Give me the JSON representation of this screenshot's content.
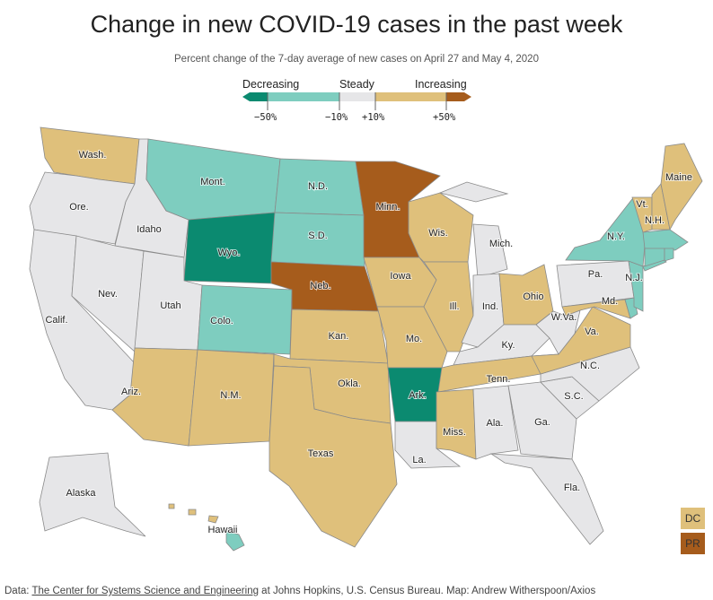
{
  "title": "Change in new COVID-19 cases in the past week",
  "subtitle": "Percent change of the 7-day average of new cases on April 27 and May 4, 2020",
  "legend": {
    "labels": {
      "decreasing": "Decreasing",
      "steady": "Steady",
      "increasing": "Increasing"
    },
    "ticks": [
      "−50%",
      "−10%",
      "+10%",
      "+50%"
    ],
    "colors": {
      "strong_decrease": "#0b8a70",
      "decrease": "#7ecdbf",
      "steady": "#e6e6e8",
      "increase": "#dfc07b",
      "strong_increase": "#a65c1c"
    }
  },
  "states": [
    {
      "id": "WA",
      "label": "Wash.",
      "cat": "increase"
    },
    {
      "id": "OR",
      "label": "Ore.",
      "cat": "steady"
    },
    {
      "id": "CA",
      "label": "Calif.",
      "cat": "steady"
    },
    {
      "id": "ID",
      "label": "Idaho",
      "cat": "steady"
    },
    {
      "id": "NV",
      "label": "Nev.",
      "cat": "steady"
    },
    {
      "id": "MT",
      "label": "Mont.",
      "cat": "decrease"
    },
    {
      "id": "WY",
      "label": "Wyo.",
      "cat": "strong_decrease"
    },
    {
      "id": "UT",
      "label": "Utah",
      "cat": "steady"
    },
    {
      "id": "AZ",
      "label": "Ariz.",
      "cat": "increase"
    },
    {
      "id": "CO",
      "label": "Colo.",
      "cat": "decrease"
    },
    {
      "id": "NM",
      "label": "N.M.",
      "cat": "increase"
    },
    {
      "id": "ND",
      "label": "N.D.",
      "cat": "decrease"
    },
    {
      "id": "SD",
      "label": "S.D.",
      "cat": "decrease"
    },
    {
      "id": "NE",
      "label": "Neb.",
      "cat": "strong_increase"
    },
    {
      "id": "KS",
      "label": "Kan.",
      "cat": "increase"
    },
    {
      "id": "OK",
      "label": "Okla.",
      "cat": "increase"
    },
    {
      "id": "TX",
      "label": "Texas",
      "cat": "increase"
    },
    {
      "id": "MN",
      "label": "Minn.",
      "cat": "strong_increase"
    },
    {
      "id": "IA",
      "label": "Iowa",
      "cat": "increase"
    },
    {
      "id": "MO",
      "label": "Mo.",
      "cat": "increase"
    },
    {
      "id": "AR",
      "label": "Ark.",
      "cat": "strong_decrease"
    },
    {
      "id": "LA",
      "label": "La.",
      "cat": "steady"
    },
    {
      "id": "WI",
      "label": "Wis.",
      "cat": "increase"
    },
    {
      "id": "IL",
      "label": "Ill.",
      "cat": "increase"
    },
    {
      "id": "MI",
      "label": "Mich.",
      "cat": "steady"
    },
    {
      "id": "IN",
      "label": "Ind.",
      "cat": "steady"
    },
    {
      "id": "OH",
      "label": "Ohio",
      "cat": "increase"
    },
    {
      "id": "KY",
      "label": "Ky.",
      "cat": "steady"
    },
    {
      "id": "TN",
      "label": "Tenn.",
      "cat": "increase"
    },
    {
      "id": "MS",
      "label": "Miss.",
      "cat": "increase"
    },
    {
      "id": "AL",
      "label": "Ala.",
      "cat": "steady"
    },
    {
      "id": "GA",
      "label": "Ga.",
      "cat": "steady"
    },
    {
      "id": "FL",
      "label": "Fla.",
      "cat": "steady"
    },
    {
      "id": "SC",
      "label": "S.C.",
      "cat": "steady"
    },
    {
      "id": "NC",
      "label": "N.C.",
      "cat": "steady"
    },
    {
      "id": "VA",
      "label": "Va.",
      "cat": "increase"
    },
    {
      "id": "WV",
      "label": "W.Va.",
      "cat": "steady"
    },
    {
      "id": "PA",
      "label": "Pa.",
      "cat": "steady"
    },
    {
      "id": "MD",
      "label": "Md.",
      "cat": "increase"
    },
    {
      "id": "DE",
      "label": "",
      "cat": "decrease"
    },
    {
      "id": "NJ",
      "label": "N.J.",
      "cat": "decrease"
    },
    {
      "id": "NY",
      "label": "N.Y.",
      "cat": "decrease"
    },
    {
      "id": "VT",
      "label": "Vt.",
      "cat": "increase"
    },
    {
      "id": "NH",
      "label": "N.H.",
      "cat": "increase"
    },
    {
      "id": "ME",
      "label": "Maine",
      "cat": "increase"
    },
    {
      "id": "MA",
      "label": "",
      "cat": "decrease"
    },
    {
      "id": "CT",
      "label": "",
      "cat": "decrease"
    },
    {
      "id": "RI",
      "label": "",
      "cat": "decrease"
    },
    {
      "id": "AK",
      "label": "Alaska",
      "cat": "steady"
    },
    {
      "id": "HI",
      "label": "Hawaii",
      "cat": "decrease"
    }
  ],
  "territories": [
    {
      "id": "DC",
      "label": "DC",
      "cat": "increase"
    },
    {
      "id": "PR",
      "label": "PR",
      "cat": "strong_increase"
    }
  ],
  "footer": {
    "prefix": "Data: ",
    "link": "The Center for Systems Science and Engineering",
    "suffix": " at Johns Hopkins, U.S. Census Bureau. Map: Andrew Witherspoon/Axios"
  }
}
